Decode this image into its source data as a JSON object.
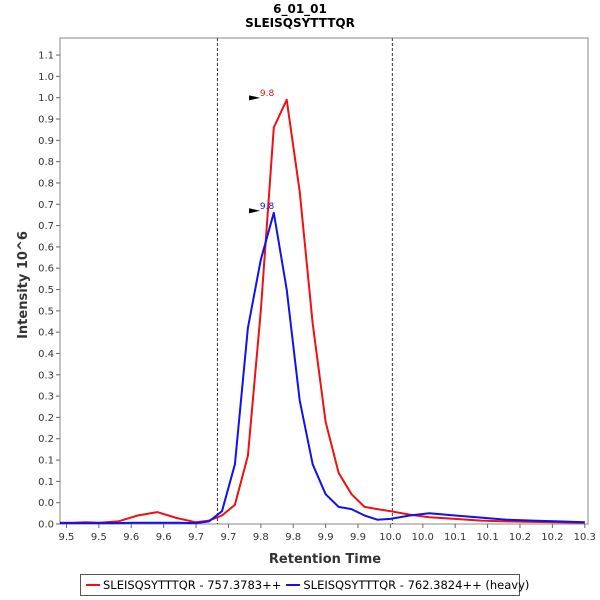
{
  "chart_data": {
    "type": "line",
    "title": "6_01_01",
    "subtitle": "SLEISQSYTTTQR",
    "xlabel": "Retention Time",
    "ylabel": "Intensity 10^6",
    "xlim": [
      9.49,
      10.305
    ],
    "ylim": [
      0,
      1.14
    ],
    "x_ticks": [
      9.5,
      9.6,
      9.7,
      9.8,
      9.9,
      10.0,
      10.1,
      10.2,
      10.3
    ],
    "x_minor_ticks": [
      9.55,
      9.65,
      9.75,
      9.85,
      9.95,
      10.05,
      10.15,
      10.25
    ],
    "x_tick_labels": [
      "9.5",
      "9.5",
      "9.6",
      "9.6",
      "9.7",
      "9.7",
      "9.8",
      "9.8",
      "9.9",
      "9.9",
      "10.0",
      "10.0",
      "10.1",
      "10.1",
      "10.2",
      "10.2",
      "10.3"
    ],
    "y_ticks": [
      0.0,
      0.05,
      0.1,
      0.15,
      0.2,
      0.25,
      0.3,
      0.35,
      0.4,
      0.45,
      0.5,
      0.55,
      0.6,
      0.65,
      0.7,
      0.75,
      0.8,
      0.85,
      0.9,
      0.95,
      1.0,
      1.05,
      1.1
    ],
    "y_tick_labels": [
      "0.0",
      "0.0",
      "0.1",
      "0.1",
      "0.2",
      "0.2",
      "0.3",
      "0.3",
      "0.4",
      "0.4",
      "0.5",
      "0.5",
      "0.6",
      "0.6",
      "0.7",
      "0.7",
      "0.8",
      "0.8",
      "0.9",
      "0.9",
      "1.0",
      "1.0",
      "1.1"
    ],
    "vlines": [
      9.733,
      10.003
    ],
    "grid": false,
    "legend_position": "bottom",
    "series": [
      {
        "name": "SLEISQSYTTTQR - 757.3783++",
        "color": "#ee1111",
        "x": [
          9.49,
          9.51,
          9.53,
          9.55,
          9.58,
          9.61,
          9.64,
          9.67,
          9.7,
          9.72,
          9.74,
          9.76,
          9.78,
          9.8,
          9.82,
          9.84,
          9.86,
          9.88,
          9.9,
          9.92,
          9.94,
          9.96,
          9.98,
          10.0,
          10.03,
          10.06,
          10.1,
          10.14,
          10.18,
          10.22,
          10.26,
          10.3
        ],
        "y": [
          0.003,
          0.003,
          0.004,
          0.003,
          0.006,
          0.02,
          0.028,
          0.014,
          0.004,
          0.008,
          0.02,
          0.045,
          0.16,
          0.5,
          0.93,
          0.995,
          0.78,
          0.47,
          0.24,
          0.12,
          0.07,
          0.04,
          0.035,
          0.03,
          0.022,
          0.016,
          0.012,
          0.008,
          0.006,
          0.005,
          0.004,
          0.003
        ],
        "peak_label": "9.8",
        "peak_x": 9.805,
        "peak_y": 0.995
      },
      {
        "name": "SLEISQSYTTTQR - 762.3824++ (heavy)",
        "color": "#1111ee",
        "x": [
          9.49,
          9.52,
          9.55,
          9.58,
          9.61,
          9.64,
          9.67,
          9.7,
          9.72,
          9.74,
          9.76,
          9.78,
          9.8,
          9.82,
          9.84,
          9.86,
          9.88,
          9.9,
          9.92,
          9.94,
          9.96,
          9.98,
          10.0,
          10.03,
          10.06,
          10.1,
          10.14,
          10.18,
          10.22,
          10.26,
          10.3
        ],
        "y": [
          0.002,
          0.002,
          0.002,
          0.002,
          0.003,
          0.003,
          0.003,
          0.002,
          0.006,
          0.03,
          0.14,
          0.46,
          0.62,
          0.73,
          0.55,
          0.29,
          0.14,
          0.07,
          0.04,
          0.035,
          0.02,
          0.01,
          0.012,
          0.02,
          0.025,
          0.02,
          0.015,
          0.01,
          0.008,
          0.006,
          0.004
        ],
        "peak_label": "9.8",
        "peak_x": 9.805,
        "peak_y": 0.73
      }
    ]
  },
  "legend": {
    "items": [
      {
        "label": "SLEISQSYTTTQR - 757.3783++",
        "color": "#ee1111"
      },
      {
        "label": "SLEISQSYTTTQR - 762.3824++ (heavy)",
        "color": "#1111ee"
      }
    ]
  }
}
